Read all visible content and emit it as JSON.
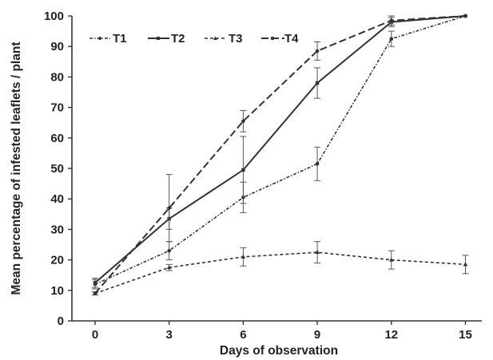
{
  "chart_data": {
    "type": "line",
    "title": "",
    "xlabel": "Days of observation",
    "ylabel": "Mean percentage of infested leaflets / plant",
    "x": [
      0,
      3,
      6,
      9,
      12,
      15
    ],
    "x_tick_labels": [
      "0",
      "3",
      "6",
      "9",
      "12",
      "15"
    ],
    "y_tick_labels": [
      "0",
      "10",
      "20",
      "30",
      "40",
      "50",
      "60",
      "70",
      "80",
      "90",
      "100"
    ],
    "ylim": [
      0,
      100
    ],
    "grid": false,
    "legend_position": "top-left",
    "series": [
      {
        "name": "T1",
        "style": "dash-dot",
        "color": "#333333",
        "values": [
          12,
          23,
          40.5,
          51.5,
          92.5,
          100
        ],
        "error": [
          1.5,
          3,
          5,
          5.5,
          2.5,
          0
        ]
      },
      {
        "name": "T2",
        "style": "solid",
        "color": "#333333",
        "values": [
          12.5,
          33.5,
          49.5,
          78,
          98,
          100
        ],
        "error": [
          1.5,
          3.5,
          11,
          5,
          1.5,
          0
        ]
      },
      {
        "name": "T3",
        "style": "short-dash",
        "color": "#333333",
        "values": [
          9,
          17.5,
          21,
          22.5,
          20,
          18.5
        ],
        "error": [
          0.5,
          1,
          3,
          3.5,
          3,
          3
        ]
      },
      {
        "name": "T4",
        "style": "long-dash",
        "color": "#333333",
        "values": [
          9,
          37,
          65.5,
          88.5,
          98.5,
          100
        ],
        "error": [
          0.5,
          11,
          3.5,
          3,
          1.5,
          0
        ]
      }
    ]
  }
}
